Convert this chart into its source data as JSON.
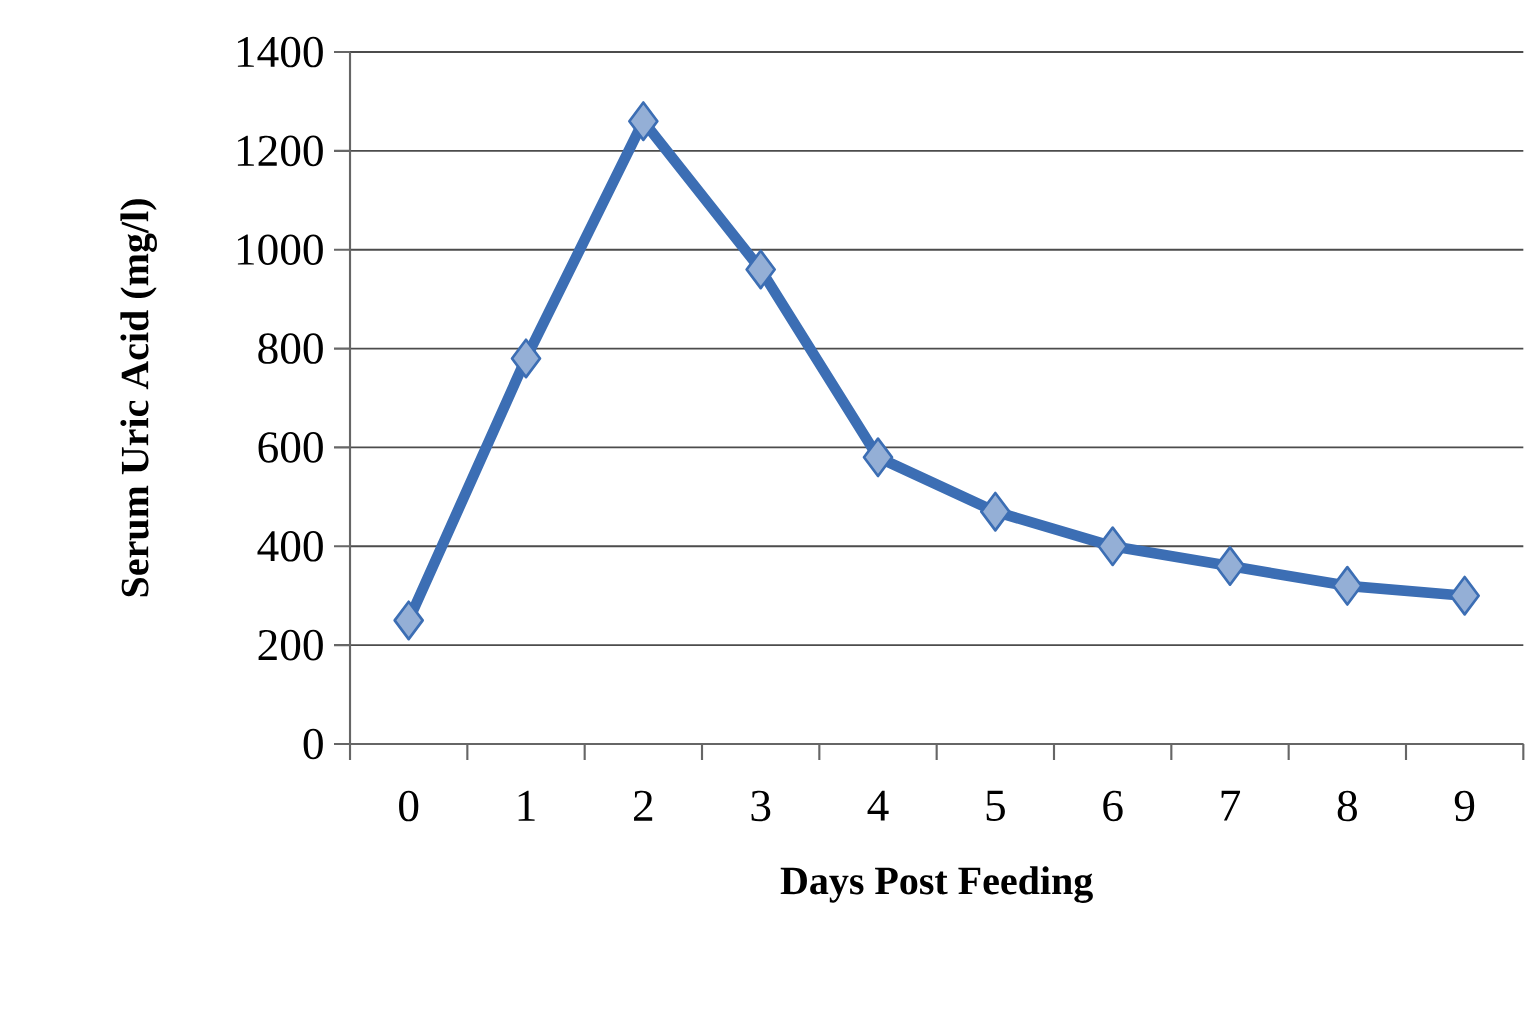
{
  "chart_data": {
    "type": "line",
    "xlabel": "Days Post Feeding",
    "ylabel": "Serum Uric Acid (mg/l)",
    "categories": [
      "0",
      "1",
      "2",
      "3",
      "4",
      "5",
      "6",
      "7",
      "8",
      "9"
    ],
    "series": [
      {
        "color": "#3c6eb4",
        "values": [
          250,
          780,
          1260,
          960,
          580,
          470,
          400,
          360,
          320,
          300
        ]
      }
    ],
    "ylim": [
      0,
      1400
    ],
    "yticks": [
      0,
      200,
      400,
      600,
      800,
      1000,
      1200,
      1400
    ],
    "grid": "y",
    "marker": "diamond",
    "line_style": "solid"
  }
}
